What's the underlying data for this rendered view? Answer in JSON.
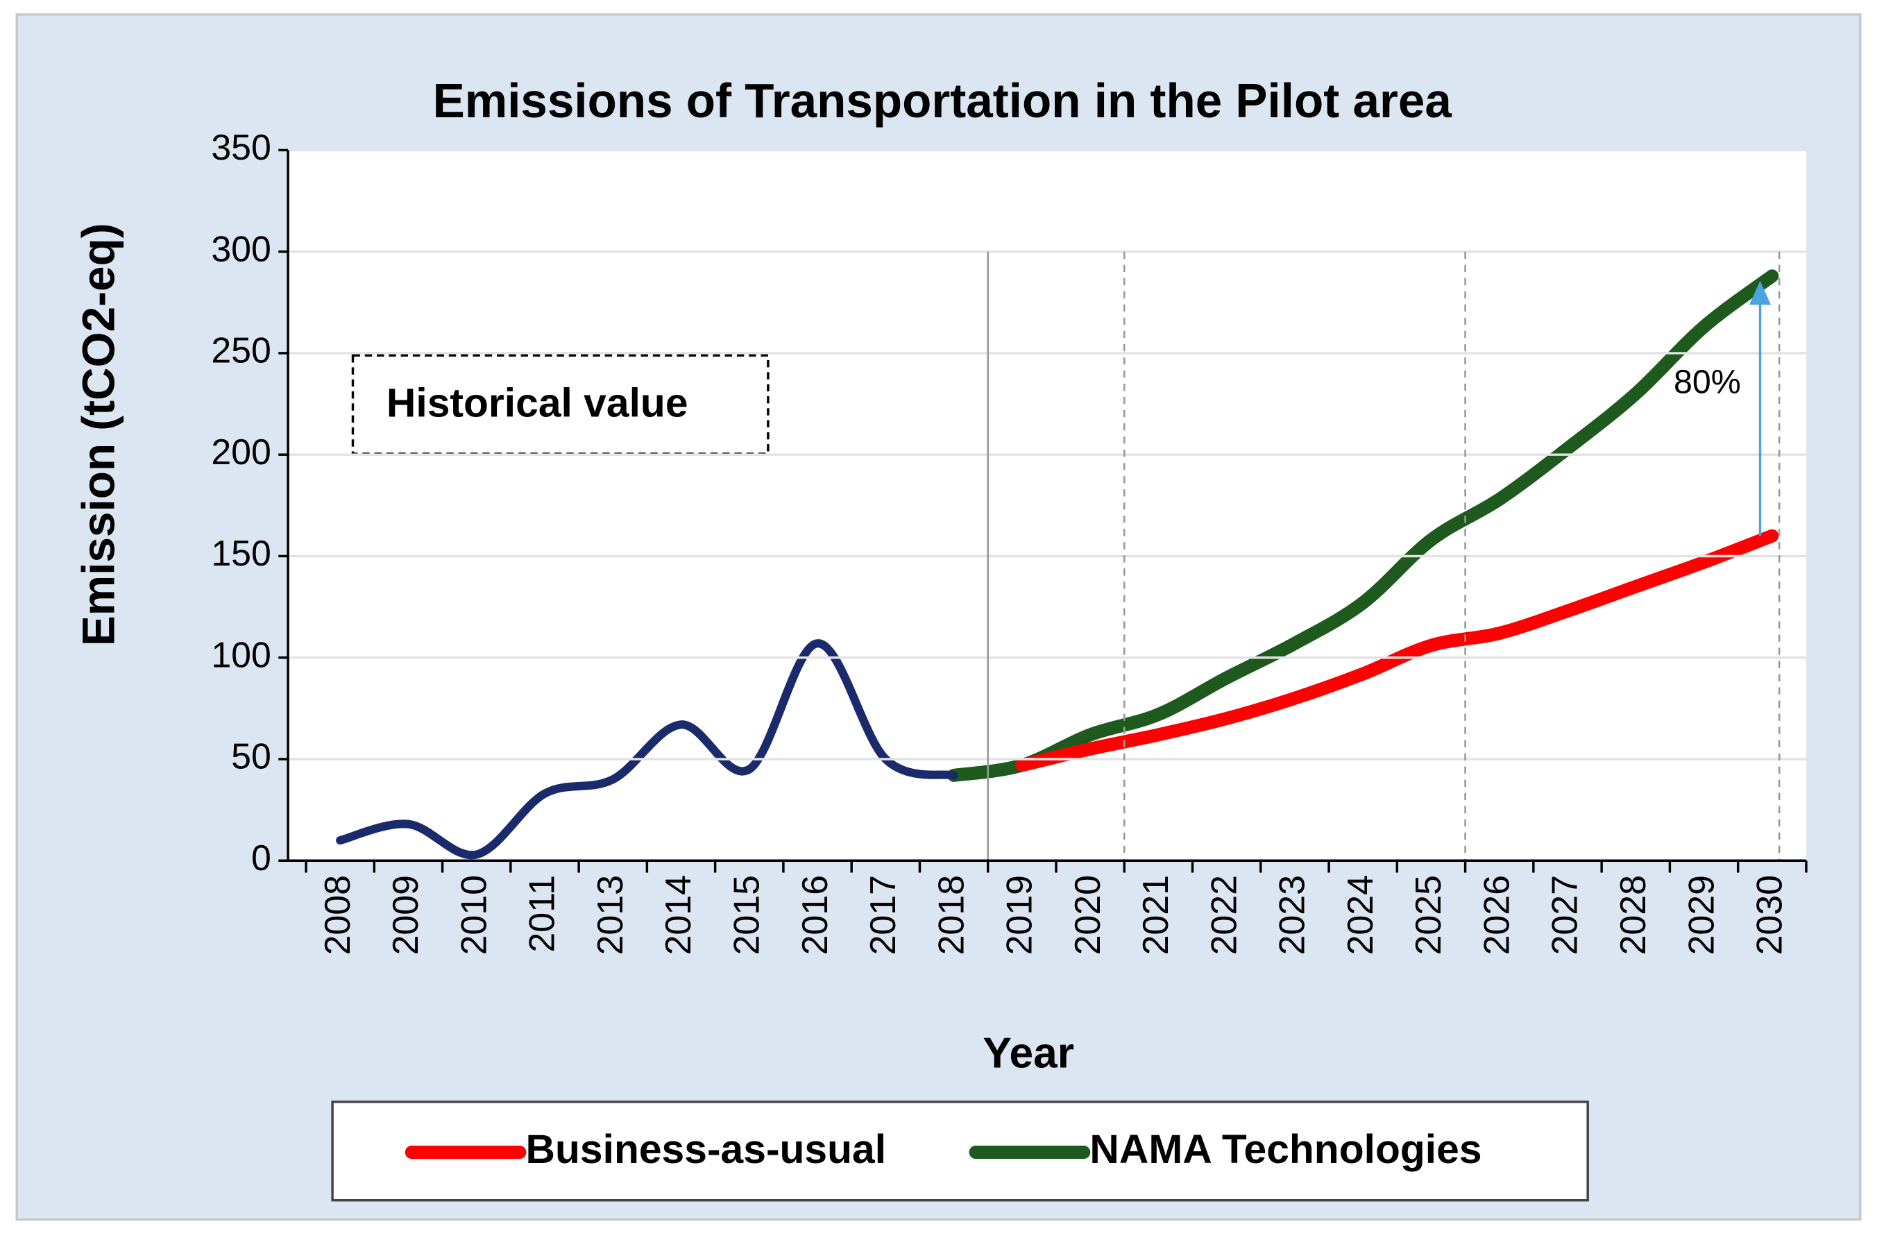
{
  "chart_data": {
    "type": "line",
    "title": "Emissions of Transportation in the Pilot area",
    "y_label": "Emission (tCO2-eq)",
    "x_label": "Year",
    "categories": [
      "2008",
      "2009",
      "2010",
      "2011",
      "2013",
      "2014",
      "2015",
      "2016",
      "2017",
      "2018",
      "2019",
      "2020",
      "2021",
      "2022",
      "2023",
      "2024",
      "2025",
      "2026",
      "2027",
      "2028",
      "2029",
      "2030"
    ],
    "series": [
      {
        "color": "#1b2a6b",
        "values": [
          10,
          18,
          3,
          33,
          40,
          67,
          45,
          107,
          50,
          42,
          null,
          null,
          null,
          null,
          null,
          null,
          null,
          null,
          null,
          null,
          null,
          null
        ]
      },
      {
        "name": "Business-as-usual",
        "color": "#ff0000",
        "values": [
          null,
          null,
          null,
          null,
          null,
          null,
          null,
          null,
          null,
          null,
          47,
          55,
          62,
          70,
          80,
          92,
          106,
          112,
          123,
          135,
          147,
          160
        ]
      },
      {
        "name": "NAMA Technologies",
        "color": "#1e5a1e",
        "values": [
          null,
          null,
          null,
          null,
          null,
          null,
          null,
          null,
          null,
          42,
          47,
          62,
          72,
          90,
          107,
          127,
          158,
          178,
          203,
          230,
          263,
          288
        ]
      }
    ],
    "ylim": [
      0,
      350
    ],
    "yticks": [
      0,
      50,
      100,
      150,
      200,
      250,
      300,
      350
    ],
    "grid": true,
    "legend": "bottom",
    "annotations": [
      {
        "text": "Historical value"
      },
      {
        "text": "80%"
      }
    ]
  }
}
